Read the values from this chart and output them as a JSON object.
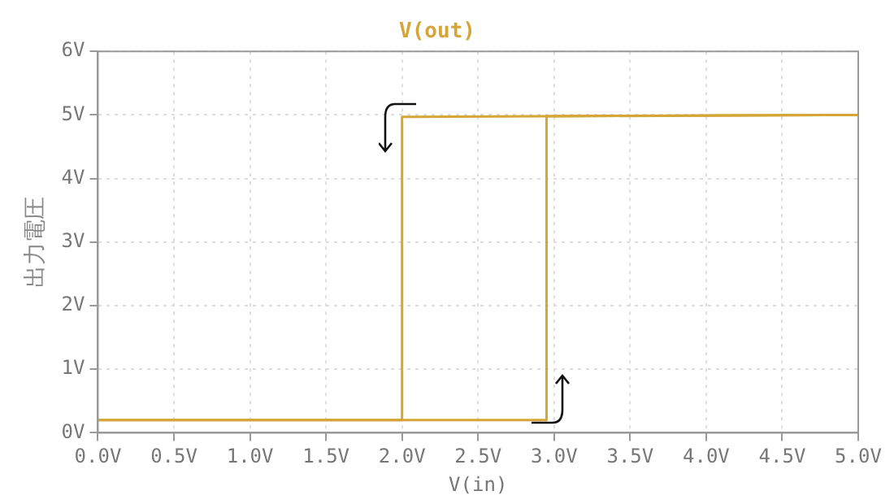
{
  "chart_data": {
    "type": "line",
    "title": "V(out)",
    "xlabel": "V(in)",
    "ylabel": "出力電圧",
    "series": [
      {
        "color": "#d4a537",
        "x": [
          0,
          2.95,
          2.95,
          5
        ],
        "values": [
          0.2,
          0.2,
          4.98,
          5
        ]
      },
      {
        "color": "#d4a537",
        "x": [
          0,
          2,
          2,
          5
        ],
        "values": [
          0.2,
          0.2,
          4.97,
          5
        ]
      }
    ],
    "xlim": [
      0,
      5
    ],
    "xticks": [
      {
        "value": 0,
        "label": "0.0V"
      },
      {
        "value": 0.5,
        "label": "0.5V"
      },
      {
        "value": 1,
        "label": "1.0V"
      },
      {
        "value": 1.5,
        "label": "1.5V"
      },
      {
        "value": 2,
        "label": "2.0V"
      },
      {
        "value": 2.5,
        "label": "2.5V"
      },
      {
        "value": 3,
        "label": "3.0V"
      },
      {
        "value": 3.5,
        "label": "3.5V"
      },
      {
        "value": 4,
        "label": "4.0V"
      },
      {
        "value": 4.5,
        "label": "4.5V"
      },
      {
        "value": 5,
        "label": "5.0V"
      }
    ],
    "ylim": [
      0,
      6
    ],
    "yticks": [
      {
        "value": 0,
        "label": "0V"
      },
      {
        "value": 1,
        "label": "1V"
      },
      {
        "value": 2,
        "label": "2V"
      },
      {
        "value": 3,
        "label": "3V"
      },
      {
        "value": 4,
        "label": "4V"
      },
      {
        "value": 5,
        "label": "5V"
      },
      {
        "value": 6,
        "label": "6V"
      }
    ],
    "grid": true,
    "legend": false,
    "marker": "none",
    "line_style": "solid"
  }
}
